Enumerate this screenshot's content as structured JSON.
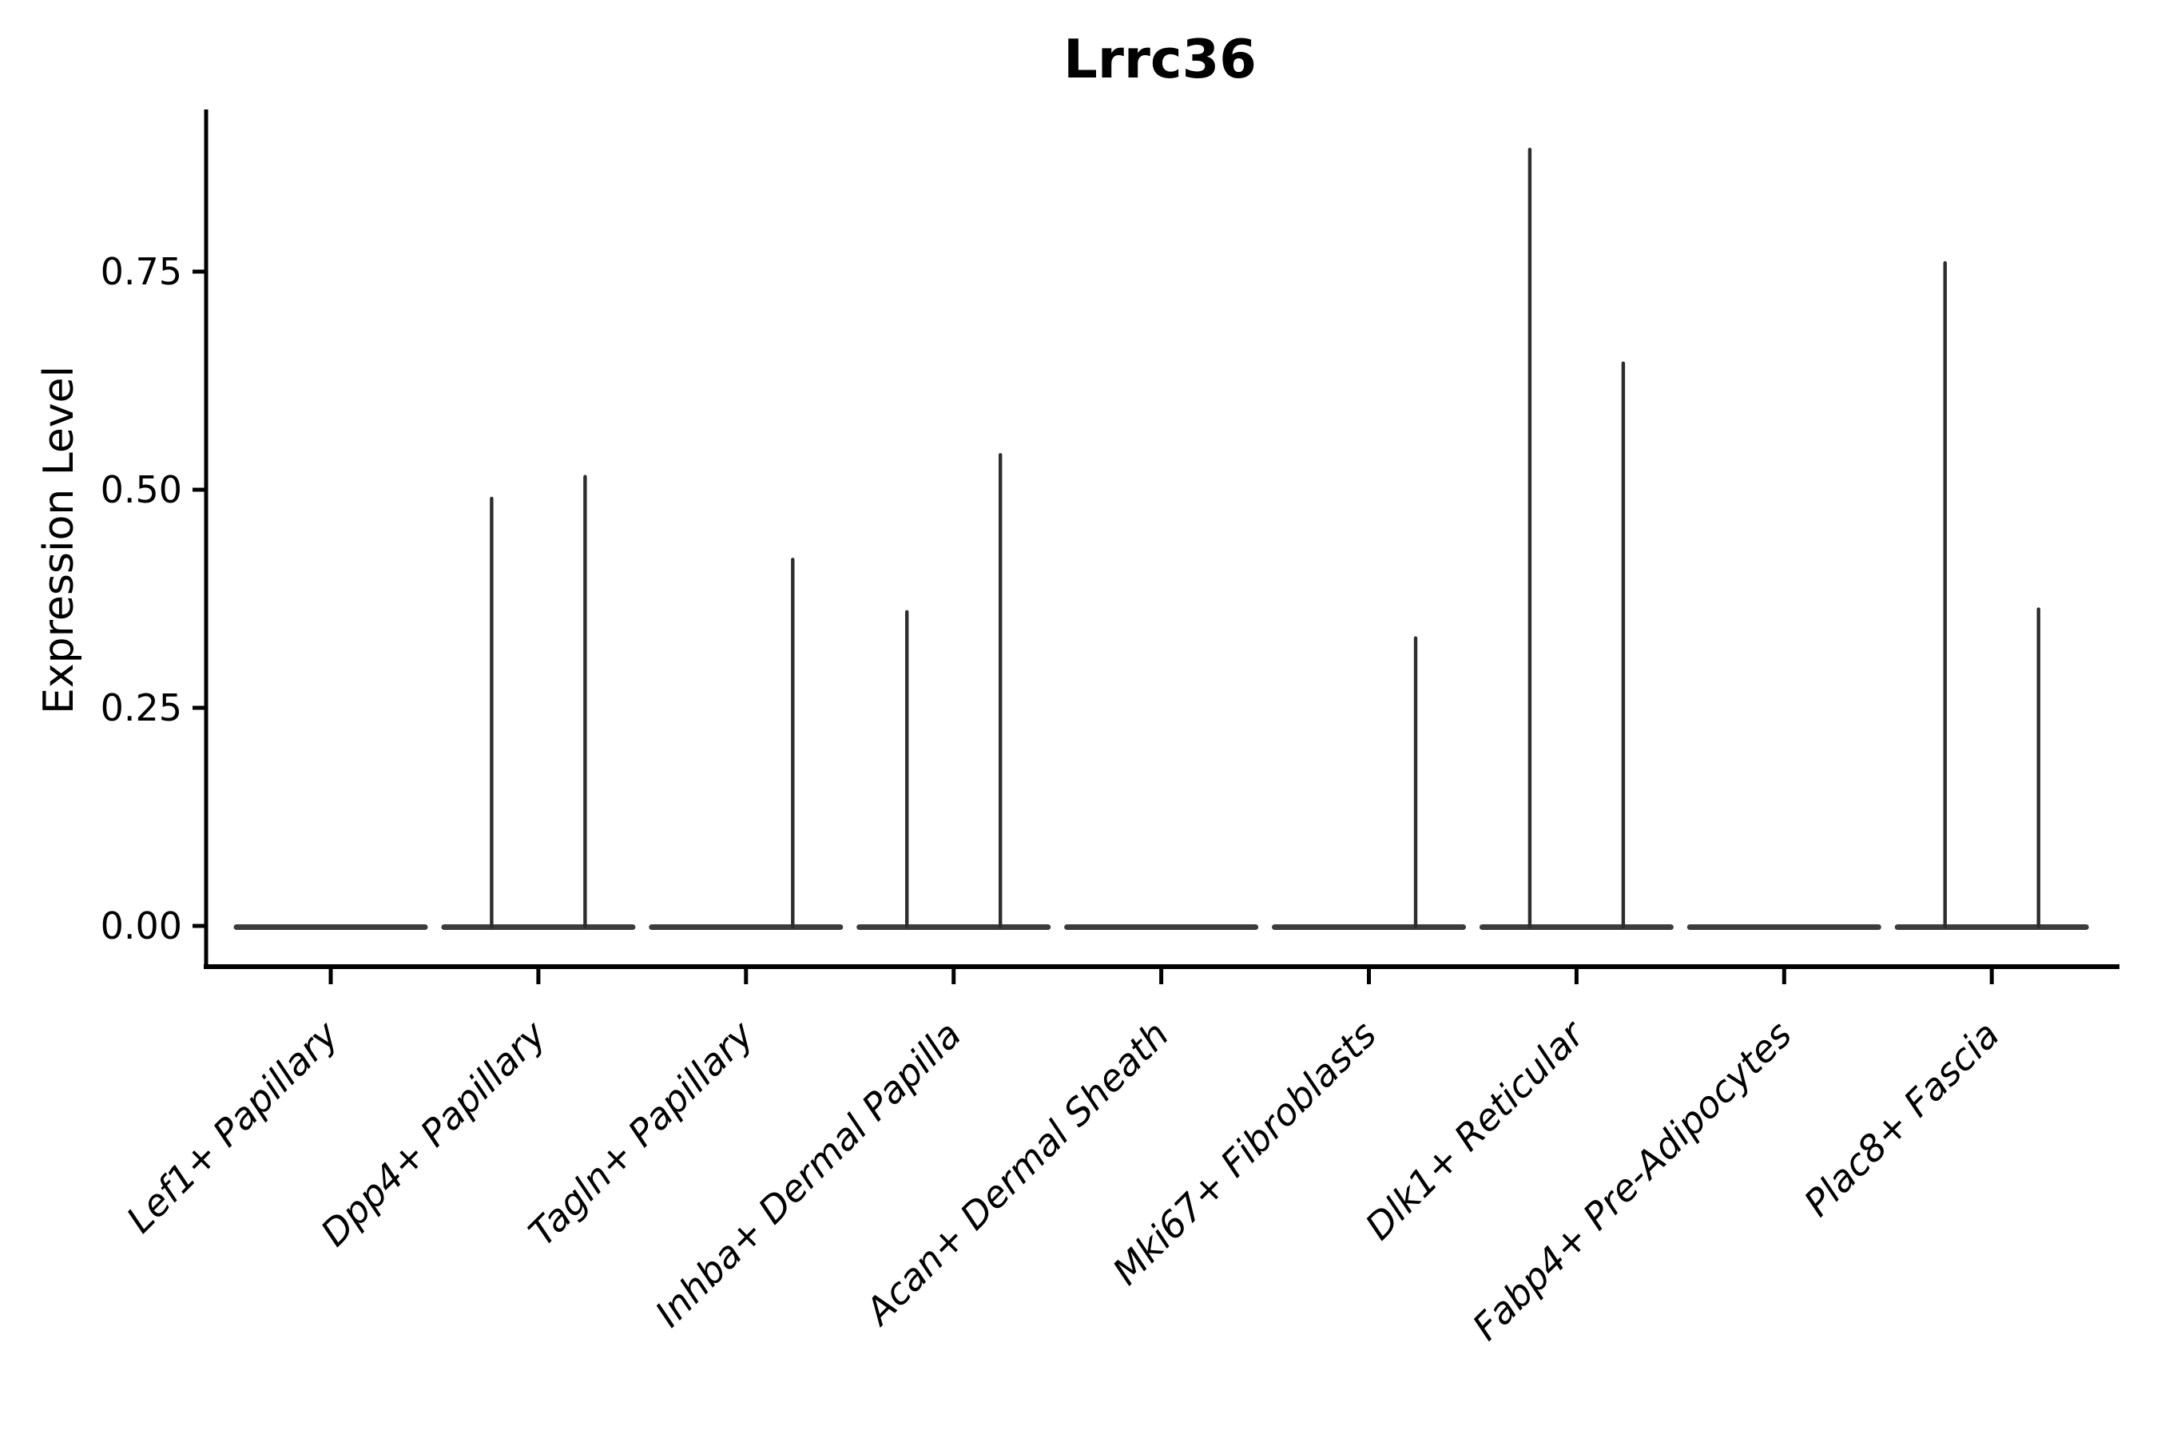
{
  "title": "Lrrc36",
  "axes": {
    "ylabel": "Expression Level",
    "ytick_labels": [
      "0.00",
      "0.25",
      "0.50",
      "0.75"
    ]
  },
  "chart_data": {
    "type": "violin",
    "title": "Lrrc36",
    "xlabel": "",
    "ylabel": "Expression Level",
    "ylim": [
      -0.047,
      0.933
    ],
    "yticks": [
      0,
      0.25,
      0.5,
      0.75
    ],
    "ytick_labels": [
      "0.00",
      "0.25",
      "0.50",
      "0.75"
    ],
    "grid": false,
    "legend_position": "none",
    "split_violins_per_category": 2,
    "categories": [
      "Lef1+ Papillary",
      "Dpp4+ Papillary",
      "Tagln+ Papillary",
      "Inhba+ Dermal Papilla",
      "Acan+ Dermal Sheath",
      "Mki67+ Fibroblasts",
      "Dlk1+ Reticular",
      "Fabp4+ Pre-Adipocytes",
      "Plac8+ Fascia"
    ],
    "violins": [
      {
        "category": "Lef1+ Papillary",
        "body_at_zero": true,
        "spikes": []
      },
      {
        "category": "Dpp4+ Papillary",
        "body_at_zero": true,
        "spikes": [
          {
            "side": "left",
            "max": 0.49
          },
          {
            "side": "right",
            "max": 0.515
          }
        ]
      },
      {
        "category": "Tagln+ Papillary",
        "body_at_zero": true,
        "spikes": [
          {
            "side": "right",
            "max": 0.42
          }
        ]
      },
      {
        "category": "Inhba+ Dermal Papilla",
        "body_at_zero": true,
        "spikes": [
          {
            "side": "left",
            "max": 0.36
          },
          {
            "side": "right",
            "max": 0.54
          }
        ]
      },
      {
        "category": "Acan+ Dermal Sheath",
        "body_at_zero": true,
        "spikes": []
      },
      {
        "category": "Mki67+ Fibroblasts",
        "body_at_zero": true,
        "spikes": [
          {
            "side": "right",
            "max": 0.33
          }
        ]
      },
      {
        "category": "Dlk1+ Reticular",
        "body_at_zero": true,
        "spikes": [
          {
            "side": "left",
            "max": 0.89
          },
          {
            "side": "right",
            "max": 0.645
          }
        ]
      },
      {
        "category": "Fabp4+ Pre-Adipocytes",
        "body_at_zero": true,
        "spikes": []
      },
      {
        "category": "Plac8+ Fascia",
        "body_at_zero": true,
        "spikes": [
          {
            "side": "left",
            "max": 0.76
          },
          {
            "side": "right",
            "max": 0.363
          }
        ]
      }
    ],
    "colors": {
      "violin_line": "#2d2d2d",
      "violin_body": "#3c3c3c",
      "axis": "#000000",
      "text": "#000000",
      "background": "#ffffff"
    }
  }
}
